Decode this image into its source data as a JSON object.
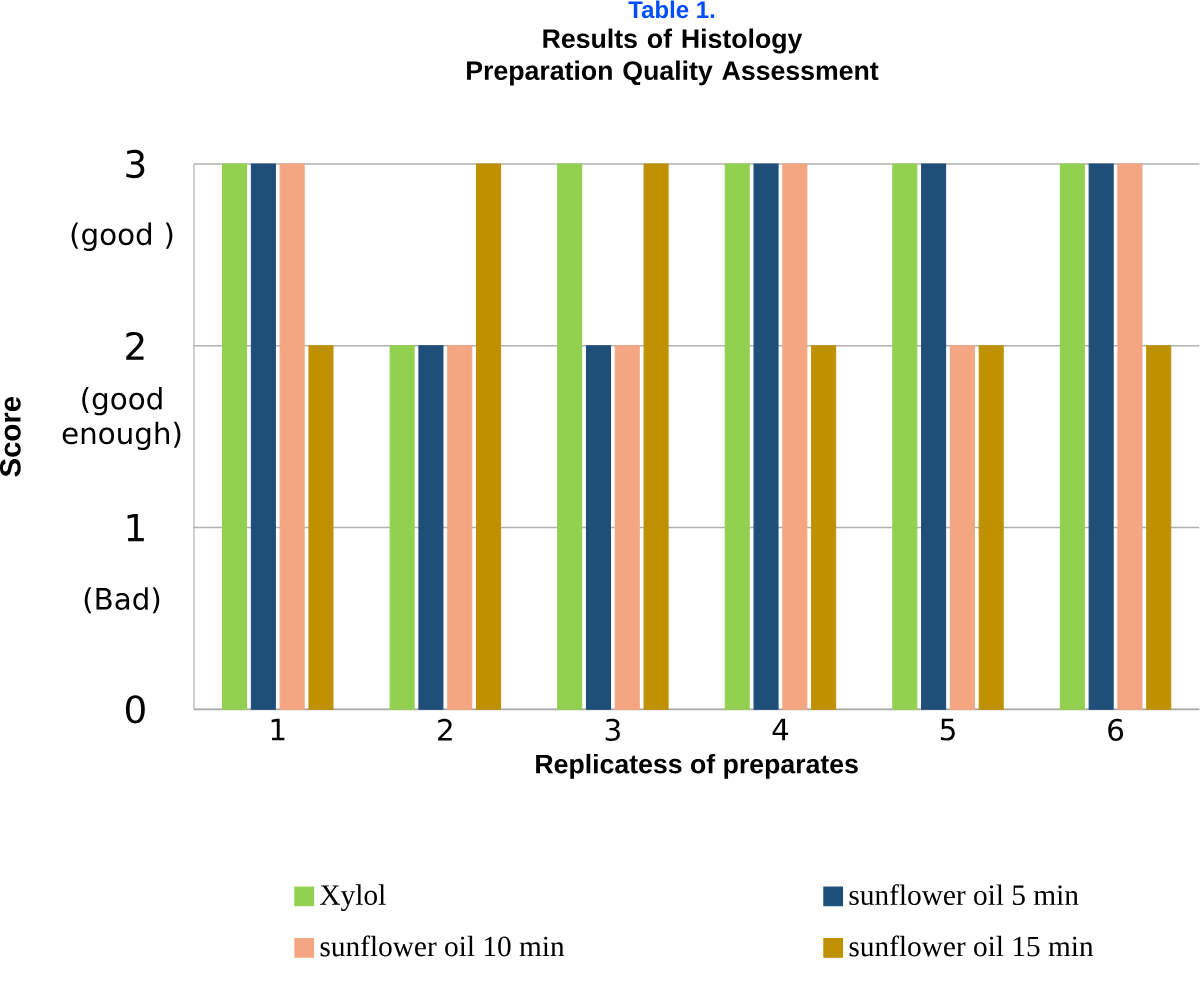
{
  "chart_data": {
    "type": "bar",
    "title": "Results of Histology Preparation Quality Assessment",
    "xlabel": "Replicatess of preparates",
    "ylabel": "Score",
    "annotations": [
      "Table 1.",
      "(good )",
      "(good enough)",
      "(Bad)"
    ],
    "categories": [
      "1",
      "2",
      "3",
      "4",
      "5",
      "6"
    ],
    "series": [
      {
        "name": "Xylol",
        "color": "#92d050",
        "values": [
          3,
          2,
          3,
          3,
          3,
          3
        ]
      },
      {
        "name": "sunflower oil 5 min",
        "color": "#1f4e79",
        "values": [
          3,
          2,
          2,
          3,
          3,
          3
        ]
      },
      {
        "name": "sunflower oil 10 min",
        "color": "#f4a582",
        "values": [
          3,
          2,
          2,
          3,
          2,
          3
        ]
      },
      {
        "name": "sunflower oil 15 min",
        "color": "#bf9000",
        "values": [
          2,
          3,
          3,
          2,
          2,
          2
        ]
      }
    ],
    "ylim": [
      0,
      3
    ],
    "yticks": [
      0,
      1,
      2,
      3
    ],
    "grid": "y",
    "legend": "bottom"
  }
}
